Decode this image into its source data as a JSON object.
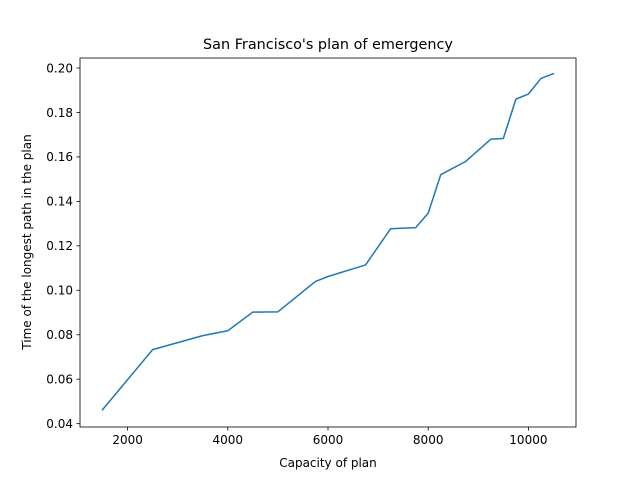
{
  "chart_data": {
    "type": "line",
    "title": "San Francisco's plan of emergency",
    "xlabel": "Capacity of plan",
    "ylabel": "Time of the longest path in the plan",
    "xlim": [
      1050,
      10950
    ],
    "ylim": [
      0.0385,
      0.2045
    ],
    "x_ticks": [
      2000,
      4000,
      6000,
      8000,
      10000
    ],
    "x_tick_labels": [
      "2000",
      "4000",
      "6000",
      "8000",
      "10000"
    ],
    "y_ticks": [
      0.04,
      0.06,
      0.08,
      0.1,
      0.12,
      0.14,
      0.16,
      0.18,
      0.2
    ],
    "y_tick_labels": [
      "0.04",
      "0.06",
      "0.08",
      "0.10",
      "0.12",
      "0.14",
      "0.16",
      "0.18",
      "0.20"
    ],
    "grid": false,
    "series": [
      {
        "color": "#1f77b4",
        "x": [
          1500,
          2500,
          3500,
          4000,
          4500,
          5000,
          5750,
          6000,
          6750,
          7250,
          7750,
          8000,
          8250,
          8750,
          9250,
          9500,
          9750,
          10000,
          10250,
          10500
        ],
        "y": [
          0.0463,
          0.0733,
          0.0796,
          0.0818,
          0.0902,
          0.0903,
          0.104,
          0.1062,
          0.1114,
          0.1277,
          0.1282,
          0.1347,
          0.152,
          0.158,
          0.168,
          0.1683,
          0.186,
          0.1883,
          0.1953,
          0.1975
        ]
      }
    ]
  }
}
